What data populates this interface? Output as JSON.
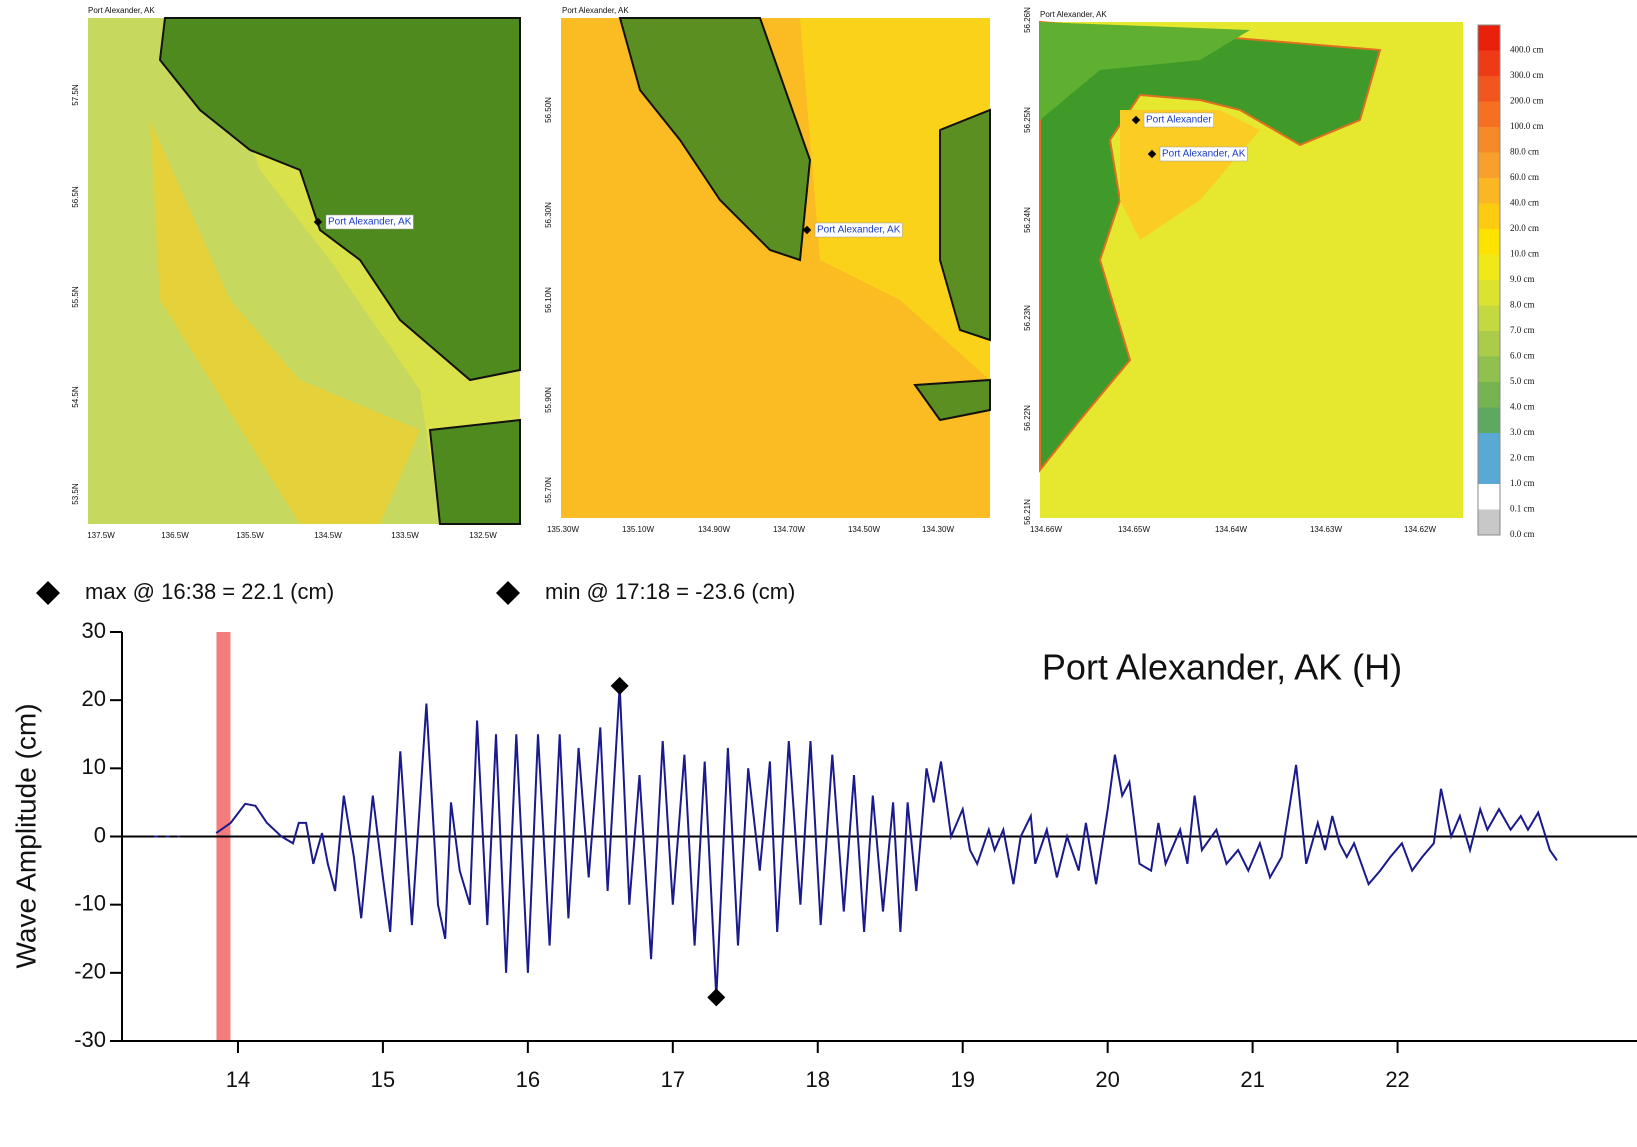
{
  "maps": [
    {
      "title": "Port Alexander, AK",
      "lat_labels": [
        "57.5N",
        "56.5N",
        "55.5N",
        "54.5N",
        "53.5N"
      ],
      "lon_labels": [
        "137.5W",
        "136.5W",
        "135.5W",
        "134.5W",
        "133.5W",
        "132.5W"
      ],
      "places": [
        "Port Alexander, AK"
      ]
    },
    {
      "title": "Port Alexander, AK",
      "lat_labels": [
        "56.50N",
        "56.30N",
        "56.10N",
        "55.90N",
        "55.70N"
      ],
      "lon_labels": [
        "135.30W",
        "135.10W",
        "134.90W",
        "134.70W",
        "134.50W",
        "134.30W"
      ],
      "places": [
        "Port Alexander, AK"
      ]
    },
    {
      "title": "Port Alexander, AK",
      "lat_labels": [
        "56.26N",
        "56.25N",
        "56.24N",
        "56.23N",
        "56.22N",
        "56.21N"
      ],
      "lon_labels": [
        "134.66W",
        "134.65W",
        "134.64W",
        "134.63W",
        "134.62W"
      ],
      "places": [
        "Port Alexander",
        "Port Alexander, AK"
      ]
    }
  ],
  "legend": {
    "items": [
      {
        "label": "400.0 cm",
        "color": "#e8200c"
      },
      {
        "label": "300.0 cm",
        "color": "#ee3a16"
      },
      {
        "label": "200.0 cm",
        "color": "#f2561e"
      },
      {
        "label": "100.0 cm",
        "color": "#f57022"
      },
      {
        "label": "80.0 cm",
        "color": "#f78a28"
      },
      {
        "label": "60.0 cm",
        "color": "#f9a02c"
      },
      {
        "label": "40.0 cm",
        "color": "#fbb624"
      },
      {
        "label": "20.0 cm",
        "color": "#fdcc12"
      },
      {
        "label": "10.0 cm",
        "color": "#fde200"
      },
      {
        "label": "9.0 cm",
        "color": "#f0e818"
      },
      {
        "label": "8.0 cm",
        "color": "#dce230"
      },
      {
        "label": "7.0 cm",
        "color": "#c4d840"
      },
      {
        "label": "6.0 cm",
        "color": "#aacc48"
      },
      {
        "label": "5.0 cm",
        "color": "#90c050"
      },
      {
        "label": "4.0 cm",
        "color": "#76b452"
      },
      {
        "label": "3.0 cm",
        "color": "#5ea860"
      },
      {
        "label": "2.0 cm",
        "color": "#5aa8d4"
      },
      {
        "label": "1.0 cm",
        "color": "#5aa8d4"
      },
      {
        "label": "0.1 cm",
        "color": "#ffffff"
      },
      {
        "label": "0.0 cm",
        "color": "#c8c8c8"
      }
    ]
  },
  "chart_data": {
    "type": "line",
    "title": "Port Alexander, AK (H)",
    "y_label": "Wave Amplitude (cm)",
    "xlim": [
      13.2,
      23.1
    ],
    "ylim": [
      -30,
      30
    ],
    "xticks": [
      14,
      15,
      16,
      17,
      18,
      19,
      20,
      21,
      22
    ],
    "yticks": [
      -30,
      -20,
      -10,
      0,
      10,
      20,
      30
    ],
    "highlight_x": 13.9,
    "highlight_color": "#f47c7c",
    "markers": [
      {
        "label": "max @ 16:38 = 22.1 (cm)",
        "x": 16.6333,
        "y": 22.1
      },
      {
        "label": "min @ 17:18 = -23.6 (cm)",
        "x": 17.3,
        "y": -23.6
      }
    ],
    "series": [
      {
        "color": "#1a1a8c",
        "x": [
          13.42,
          13.45,
          13.47,
          13.5,
          13.53,
          13.55,
          13.58,
          13.6,
          13.62,
          13.85,
          13.95,
          14.05,
          14.12,
          14.2,
          14.3,
          14.38,
          14.42,
          14.47,
          14.52,
          14.58,
          14.62,
          14.67,
          14.73,
          14.8,
          14.85,
          14.93,
          15.0,
          15.05,
          15.12,
          15.2,
          15.3,
          15.38,
          15.43,
          15.47,
          15.53,
          15.6,
          15.65,
          15.72,
          15.78,
          15.85,
          15.92,
          16.0,
          16.07,
          16.15,
          16.22,
          16.28,
          16.35,
          16.42,
          16.5,
          16.55,
          16.6333,
          16.7,
          16.77,
          16.85,
          16.93,
          17.0,
          17.08,
          17.15,
          17.22,
          17.3,
          17.38,
          17.45,
          17.52,
          17.6,
          17.67,
          17.72,
          17.8,
          17.88,
          17.95,
          18.02,
          18.1,
          18.18,
          18.25,
          18.32,
          18.38,
          18.45,
          18.52,
          18.57,
          18.62,
          18.68,
          18.75,
          18.8,
          18.85,
          18.92,
          19.0,
          19.05,
          19.1,
          19.18,
          19.22,
          19.28,
          19.35,
          19.4,
          19.47,
          19.5,
          19.58,
          19.65,
          19.72,
          19.8,
          19.85,
          19.92,
          20.0,
          20.05,
          20.1,
          20.15,
          20.22,
          20.3,
          20.35,
          20.4,
          20.5,
          20.55,
          20.6,
          20.65,
          20.75,
          20.82,
          20.9,
          20.97,
          21.05,
          21.12,
          21.2,
          21.3,
          21.37,
          21.45,
          21.5,
          21.55,
          21.6,
          21.65,
          21.7,
          21.8,
          21.88,
          21.95,
          22.03,
          22.1,
          22.17,
          22.25,
          22.3,
          22.37,
          22.43,
          22.5,
          22.57,
          22.62,
          22.7,
          22.78,
          22.85,
          22.9,
          22.97,
          23.05,
          23.1
        ],
        "values": [
          0,
          0,
          null,
          0,
          0,
          null,
          0,
          0,
          null,
          0.5,
          2,
          4.8,
          4.5,
          2,
          0,
          -1,
          2,
          2,
          -4,
          0.5,
          -4,
          -8,
          6,
          -3,
          -12,
          6,
          -6,
          -14,
          12.5,
          -13,
          19.5,
          -10,
          -15,
          5,
          -5,
          -10,
          17,
          -13,
          15,
          -20,
          15,
          -20,
          15,
          -16,
          15,
          -12,
          13,
          -6,
          16,
          -8,
          22.1,
          -10,
          9,
          -18,
          14,
          -10,
          12,
          -16,
          11,
          -23.6,
          13,
          -16,
          10,
          -5,
          11,
          -14,
          14,
          -10,
          14,
          -13,
          12,
          -11,
          9,
          -14,
          6,
          -11,
          5,
          -14,
          5,
          -8,
          10,
          5,
          11,
          0,
          4,
          -2,
          -4,
          1,
          -2,
          1,
          -7,
          0,
          3,
          -4,
          1,
          -6,
          0,
          -5,
          2,
          -7,
          4,
          12,
          6,
          8,
          -4,
          -5,
          2,
          -4,
          1,
          -4,
          6,
          -2,
          1,
          -4,
          -2,
          -5,
          -1,
          -6,
          -3,
          10.5,
          -4,
          2,
          -2,
          3,
          -1,
          -3,
          -1,
          -7,
          -5,
          -3,
          -1,
          -5,
          -3,
          -1,
          7,
          0,
          3,
          -2,
          4,
          1,
          4,
          1,
          3,
          1,
          3.5,
          -2,
          -3.5
        ]
      }
    ]
  }
}
